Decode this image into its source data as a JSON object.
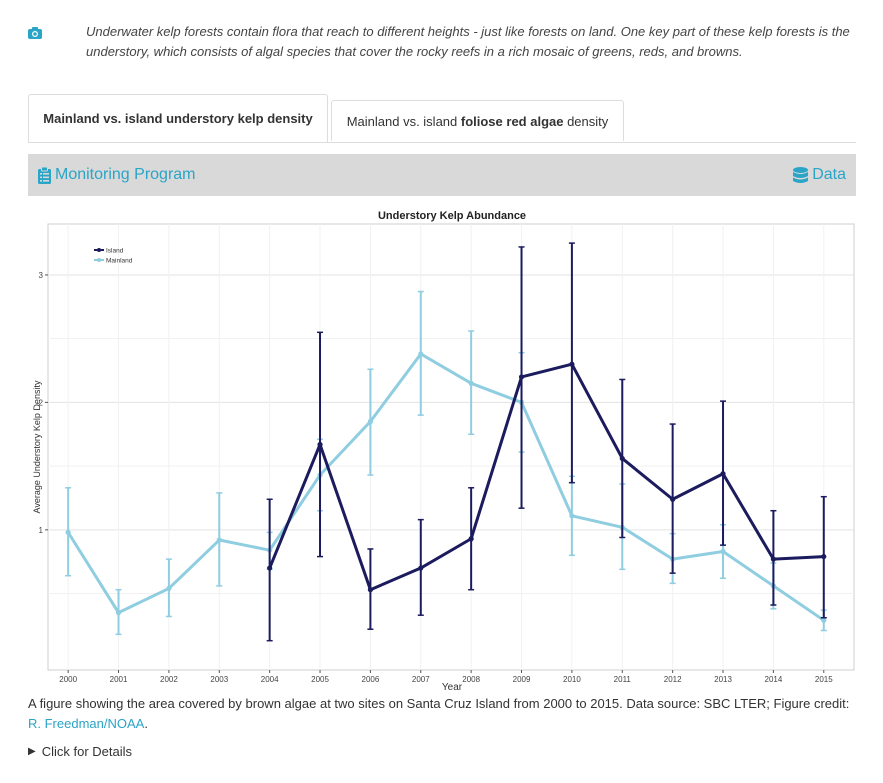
{
  "intro": {
    "icon": "camera-icon",
    "text": "Underwater kelp forests contain flora that reach to different heights - just like forests on land. One key part of these kelp forests is the understory, which consists of algal species that cover the rocky reefs in a rich mosaic of greens, reds, and browns."
  },
  "tabs": [
    {
      "label": "Mainland vs. island understory kelp density"
    },
    {
      "prefix": "Mainland vs. island ",
      "bold": "foliose red algae",
      "suffix": " density"
    }
  ],
  "toolbar": {
    "left_label": "Monitoring Program",
    "right_label": "Data",
    "accent": "#2aa4c7"
  },
  "chart_data": {
    "type": "line",
    "title": "Understory Kelp Abundance",
    "xlabel": "Year",
    "ylabel": "Average Understory Kelp Density",
    "xlim": [
      1999.6,
      2015.6
    ],
    "ylim": [
      -0.1,
      3.4
    ],
    "yticks": [
      1,
      2,
      3
    ],
    "grid": true,
    "legend_position": "top-left",
    "categories": [
      "2000",
      "2001",
      "2002",
      "2003",
      "2004",
      "2005",
      "2006",
      "2007",
      "2008",
      "2009",
      "2010",
      "2011",
      "2012",
      "2013",
      "2014",
      "2015"
    ],
    "series": [
      {
        "name": "Island",
        "color": "#1b1b5e",
        "x": [
          2004,
          2005,
          2006,
          2007,
          2008,
          2009,
          2010,
          2011,
          2012,
          2013,
          2014,
          2015
        ],
        "values": [
          0.7,
          1.67,
          0.53,
          0.7,
          0.93,
          2.2,
          2.3,
          1.56,
          1.24,
          1.44,
          0.77,
          0.79
        ],
        "err_low": [
          0.13,
          0.79,
          0.22,
          0.33,
          0.53,
          1.17,
          1.37,
          0.94,
          0.66,
          0.88,
          0.41,
          0.31
        ],
        "err_high": [
          1.24,
          2.55,
          0.85,
          1.08,
          1.33,
          3.22,
          3.25,
          2.18,
          1.83,
          2.01,
          1.15,
          1.26
        ]
      },
      {
        "name": "Mainland",
        "color": "#8fcde0",
        "x": [
          2000,
          2001,
          2002,
          2003,
          2004,
          2005,
          2006,
          2007,
          2008,
          2009,
          2010,
          2011,
          2012,
          2013,
          2014,
          2015
        ],
        "values": [
          0.98,
          0.35,
          0.54,
          0.92,
          0.84,
          1.43,
          1.85,
          2.38,
          2.15,
          2.0,
          1.11,
          1.02,
          0.77,
          0.83,
          0.56,
          0.29
        ],
        "err_low": [
          0.64,
          0.18,
          0.32,
          0.56,
          0.69,
          1.15,
          1.43,
          1.9,
          1.75,
          1.61,
          0.8,
          0.69,
          0.58,
          0.62,
          0.38,
          0.21
        ],
        "err_high": [
          1.33,
          0.53,
          0.77,
          1.29,
          0.98,
          1.71,
          2.26,
          2.87,
          2.56,
          2.39,
          1.42,
          1.36,
          0.97,
          1.04,
          0.74,
          0.37
        ]
      }
    ]
  },
  "caption": {
    "text": "A figure showing the area covered by brown algae at two sites on Santa Cruz Island from 2000 to 2015. Data source: SBC LTER; Figure credit: ",
    "link": "R. Freedman/NOAA",
    "end": "."
  },
  "details": {
    "label": "Click for Details"
  }
}
